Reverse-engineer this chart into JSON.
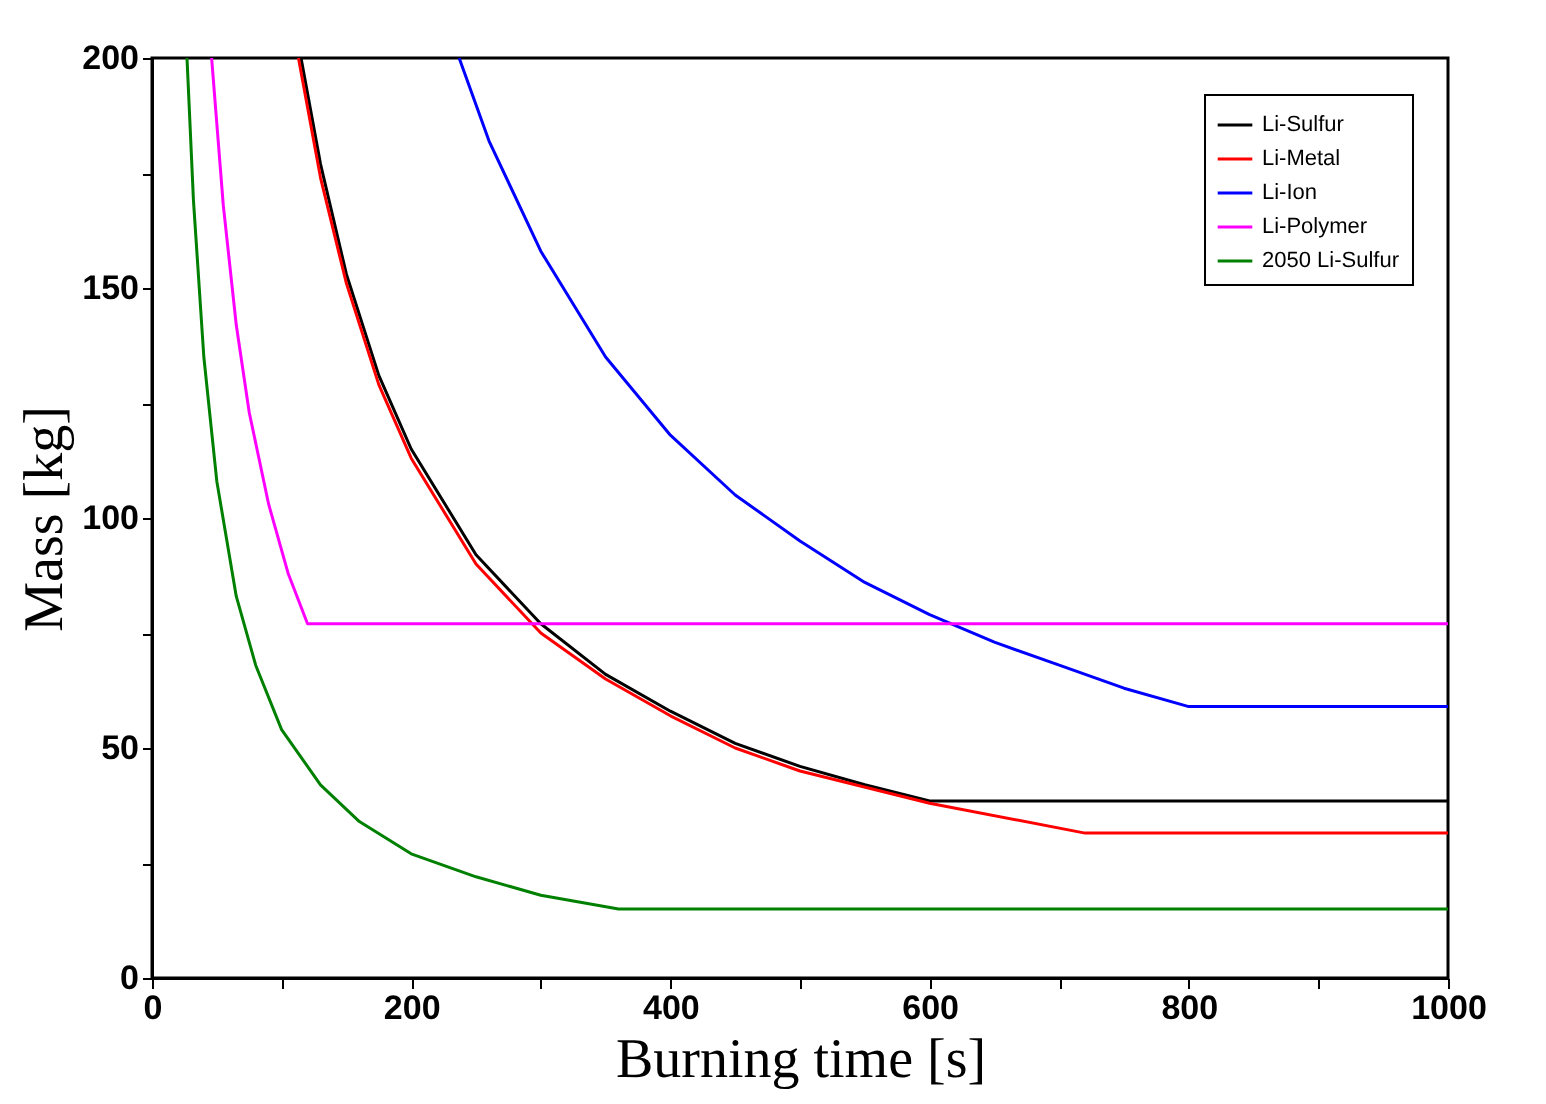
{
  "chart_data": {
    "type": "line",
    "xlabel": "Burning time [s]",
    "ylabel": "Mass [kg]",
    "xlim": [
      0,
      1000
    ],
    "ylim": [
      0,
      200
    ],
    "xticks": [
      0,
      {
        "value": 100,
        "label": null
      },
      200,
      {
        "value": 300,
        "label": null
      },
      400,
      {
        "value": 500,
        "label": null
      },
      600,
      {
        "value": 700,
        "label": null
      },
      800,
      {
        "value": 900,
        "label": null
      },
      1000
    ],
    "yticks": [
      0,
      {
        "value": 25,
        "label": null
      },
      50,
      {
        "value": 75,
        "label": null
      },
      100,
      {
        "value": 125,
        "label": null
      },
      150,
      {
        "value": 175,
        "label": null
      },
      200
    ],
    "grid": false,
    "legend": "top right",
    "line_style": "solid",
    "marker": "none",
    "series": [
      {
        "name": "Li-Sulfur",
        "color": "#000000",
        "x": [
          115,
          130,
          150,
          175,
          200,
          250,
          300,
          350,
          400,
          450,
          500,
          550,
          600,
          1000
        ],
        "values": [
          200,
          177,
          153,
          131,
          115,
          92,
          77,
          66,
          58,
          51,
          46,
          42,
          38.5,
          38.5
        ]
      },
      {
        "name": "Li-Metal",
        "color": "#ff0000",
        "x": [
          113,
          130,
          150,
          175,
          200,
          250,
          300,
          350,
          400,
          450,
          500,
          600,
          720,
          1000
        ],
        "values": [
          200,
          174,
          151,
          129,
          113,
          90,
          75,
          65,
          57,
          50,
          45,
          38,
          31.5,
          31.5
        ]
      },
      {
        "name": "Li-Ion",
        "color": "#0000ff",
        "x": [
          237,
          260,
          300,
          350,
          400,
          450,
          500,
          550,
          600,
          650,
          700,
          750,
          800,
          1000
        ],
        "values": [
          200,
          182,
          158,
          135,
          118,
          105,
          95,
          86,
          79,
          73,
          68,
          63,
          59,
          59
        ]
      },
      {
        "name": "Li-Polymer",
        "color": "#ff00ff",
        "x": [
          46,
          55,
          65,
          75,
          90,
          105,
          120,
          1000
        ],
        "values": [
          200,
          168,
          142,
          123,
          103,
          88,
          77,
          77
        ]
      },
      {
        "name": "2050 Li-Sulfur",
        "color": "#008000",
        "x": [
          27,
          32,
          40,
          50,
          65,
          80,
          100,
          130,
          160,
          200,
          250,
          300,
          360,
          1000
        ],
        "values": [
          200,
          169,
          135,
          108,
          83,
          68,
          54,
          42,
          34,
          27,
          22,
          18,
          15,
          15
        ]
      }
    ]
  }
}
